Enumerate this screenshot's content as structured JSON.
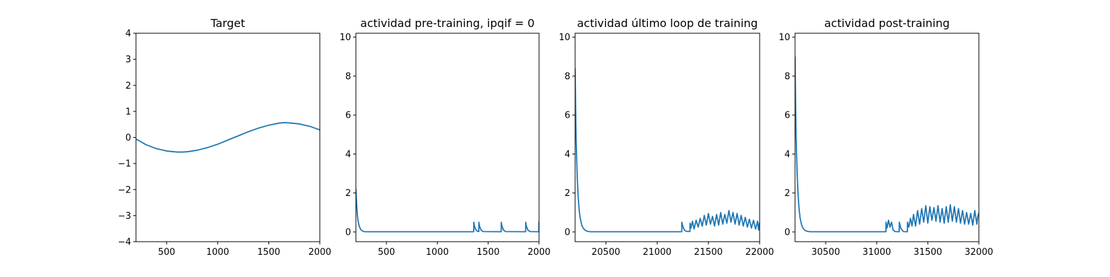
{
  "chart_data": [
    {
      "type": "line",
      "title": "Target",
      "xlabel": "",
      "ylabel": "",
      "xlim": [
        200,
        2000
      ],
      "ylim": [
        -4,
        4
      ],
      "xticks": [
        500,
        1000,
        1500,
        2000
      ],
      "yticks": [
        -4,
        -3,
        -2,
        -1,
        0,
        1,
        2,
        3,
        4
      ],
      "series": [
        {
          "name": "target",
          "color": "#1f77b4",
          "x": [
            200,
            300,
            400,
            500,
            600,
            650,
            700,
            800,
            900,
            1000,
            1100,
            1200,
            1300,
            1400,
            1500,
            1600,
            1650,
            1700,
            1800,
            1900,
            2000
          ],
          "y": [
            -0.06,
            -0.28,
            -0.43,
            -0.52,
            -0.56,
            -0.56,
            -0.55,
            -0.49,
            -0.39,
            -0.26,
            -0.1,
            0.06,
            0.22,
            0.36,
            0.47,
            0.55,
            0.57,
            0.56,
            0.52,
            0.43,
            0.29
          ]
        }
      ]
    },
    {
      "type": "line",
      "title": "actividad pre-training, ipqif = 0",
      "xlabel": "",
      "ylabel": "",
      "xlim": [
        200,
        2000
      ],
      "ylim": [
        -0.5,
        10.2
      ],
      "xticks": [
        500,
        1000,
        1500,
        2000
      ],
      "yticks": [
        0,
        2,
        4,
        6,
        8,
        10
      ],
      "series": [
        {
          "name": "actividad",
          "color": "#1f77b4",
          "x": [
            200,
            205,
            210,
            215,
            220,
            230,
            240,
            250,
            265,
            280,
            300,
            330,
            1358,
            1359,
            1365,
            1380,
            1395,
            1408,
            1409,
            1415,
            1430,
            1450,
            1628,
            1629,
            1635,
            1650,
            1670,
            1868,
            1869,
            1875,
            1890,
            1910,
            1998,
            1999,
            2000
          ],
          "y": [
            2.2,
            1.7,
            1.2,
            0.85,
            0.6,
            0.35,
            0.2,
            0.11,
            0.05,
            0.02,
            0.01,
            0.01,
            0.01,
            0.5,
            0.3,
            0.1,
            0.03,
            0.02,
            0.5,
            0.3,
            0.1,
            0.02,
            0.01,
            0.5,
            0.3,
            0.1,
            0.02,
            0.01,
            0.5,
            0.3,
            0.1,
            0.02,
            0.01,
            0.5,
            0.5
          ]
        }
      ]
    },
    {
      "type": "line",
      "title": "actividad último loop de training",
      "xlabel": "",
      "ylabel": "",
      "xlim": [
        20200,
        22000
      ],
      "ylim": [
        -0.5,
        10.2
      ],
      "xticks": [
        20500,
        21000,
        21500,
        22000
      ],
      "yticks": [
        0,
        2,
        4,
        6,
        8,
        10
      ],
      "series": [
        {
          "name": "actividad",
          "color": "#1f77b4",
          "x": [
            20200,
            20205,
            20210,
            20220,
            20230,
            20240,
            20250,
            20265,
            20280,
            20300,
            20320,
            20350,
            21240,
            21241,
            21250,
            21265,
            21285,
            21320,
            21321,
            21330,
            21345,
            21360,
            21380,
            21400,
            21420,
            21440,
            21460,
            21480,
            21500,
            21520,
            21540,
            21560,
            21580,
            21600,
            21620,
            21640,
            21660,
            21680,
            21700,
            21720,
            21740,
            21760,
            21780,
            21800,
            21820,
            21840,
            21860,
            21880,
            21900,
            21920,
            21940,
            21960,
            21980,
            21990,
            22000
          ],
          "y": [
            8.4,
            6.3,
            4.7,
            2.9,
            1.8,
            1.1,
            0.7,
            0.35,
            0.18,
            0.08,
            0.03,
            0.01,
            0.01,
            0.5,
            0.3,
            0.1,
            0.03,
            0.02,
            0.45,
            0.2,
            0.55,
            0.15,
            0.6,
            0.25,
            0.7,
            0.3,
            0.85,
            0.35,
            0.95,
            0.4,
            0.8,
            0.3,
            0.9,
            0.35,
            1.0,
            0.4,
            0.9,
            0.45,
            1.1,
            0.5,
            1.0,
            0.4,
            0.95,
            0.35,
            0.85,
            0.3,
            0.75,
            0.25,
            0.65,
            0.2,
            0.6,
            0.15,
            0.55,
            0.1,
            0.5
          ]
        }
      ]
    },
    {
      "type": "line",
      "title": "actividad post-training",
      "xlabel": "",
      "ylabel": "",
      "xlim": [
        30200,
        32000
      ],
      "ylim": [
        -0.5,
        10.2
      ],
      "xticks": [
        30500,
        31000,
        31500,
        32000
      ],
      "yticks": [
        0,
        2,
        4,
        6,
        8,
        10
      ],
      "series": [
        {
          "name": "actividad",
          "color": "#1f77b4",
          "x": [
            30200,
            30205,
            30210,
            30220,
            30230,
            30240,
            30250,
            30265,
            30280,
            30300,
            30320,
            30350,
            31090,
            31091,
            31100,
            31115,
            31130,
            31145,
            31160,
            31180,
            31220,
            31221,
            31235,
            31260,
            31300,
            31301,
            31315,
            31330,
            31345,
            31360,
            31380,
            31400,
            31420,
            31440,
            31460,
            31480,
            31500,
            31520,
            31540,
            31560,
            31580,
            31600,
            31620,
            31640,
            31660,
            31680,
            31700,
            31720,
            31740,
            31760,
            31780,
            31800,
            31820,
            31840,
            31860,
            31880,
            31900,
            31920,
            31940,
            31960,
            31980,
            31990,
            32000
          ],
          "y": [
            9.0,
            6.8,
            5.0,
            3.1,
            1.9,
            1.15,
            0.7,
            0.35,
            0.17,
            0.07,
            0.03,
            0.01,
            0.01,
            0.5,
            0.2,
            0.6,
            0.25,
            0.5,
            0.1,
            0.02,
            0.01,
            0.5,
            0.2,
            0.02,
            0.01,
            0.5,
            0.25,
            0.7,
            0.3,
            0.9,
            0.3,
            1.1,
            0.4,
            1.2,
            0.5,
            1.35,
            0.45,
            1.3,
            0.6,
            1.25,
            0.55,
            1.35,
            0.5,
            1.2,
            0.45,
            1.3,
            0.5,
            1.4,
            0.55,
            1.3,
            0.5,
            1.2,
            0.45,
            1.1,
            0.4,
            1.0,
            0.4,
            0.95,
            0.35,
            1.1,
            0.4,
            0.8,
            1.0
          ]
        }
      ]
    }
  ]
}
